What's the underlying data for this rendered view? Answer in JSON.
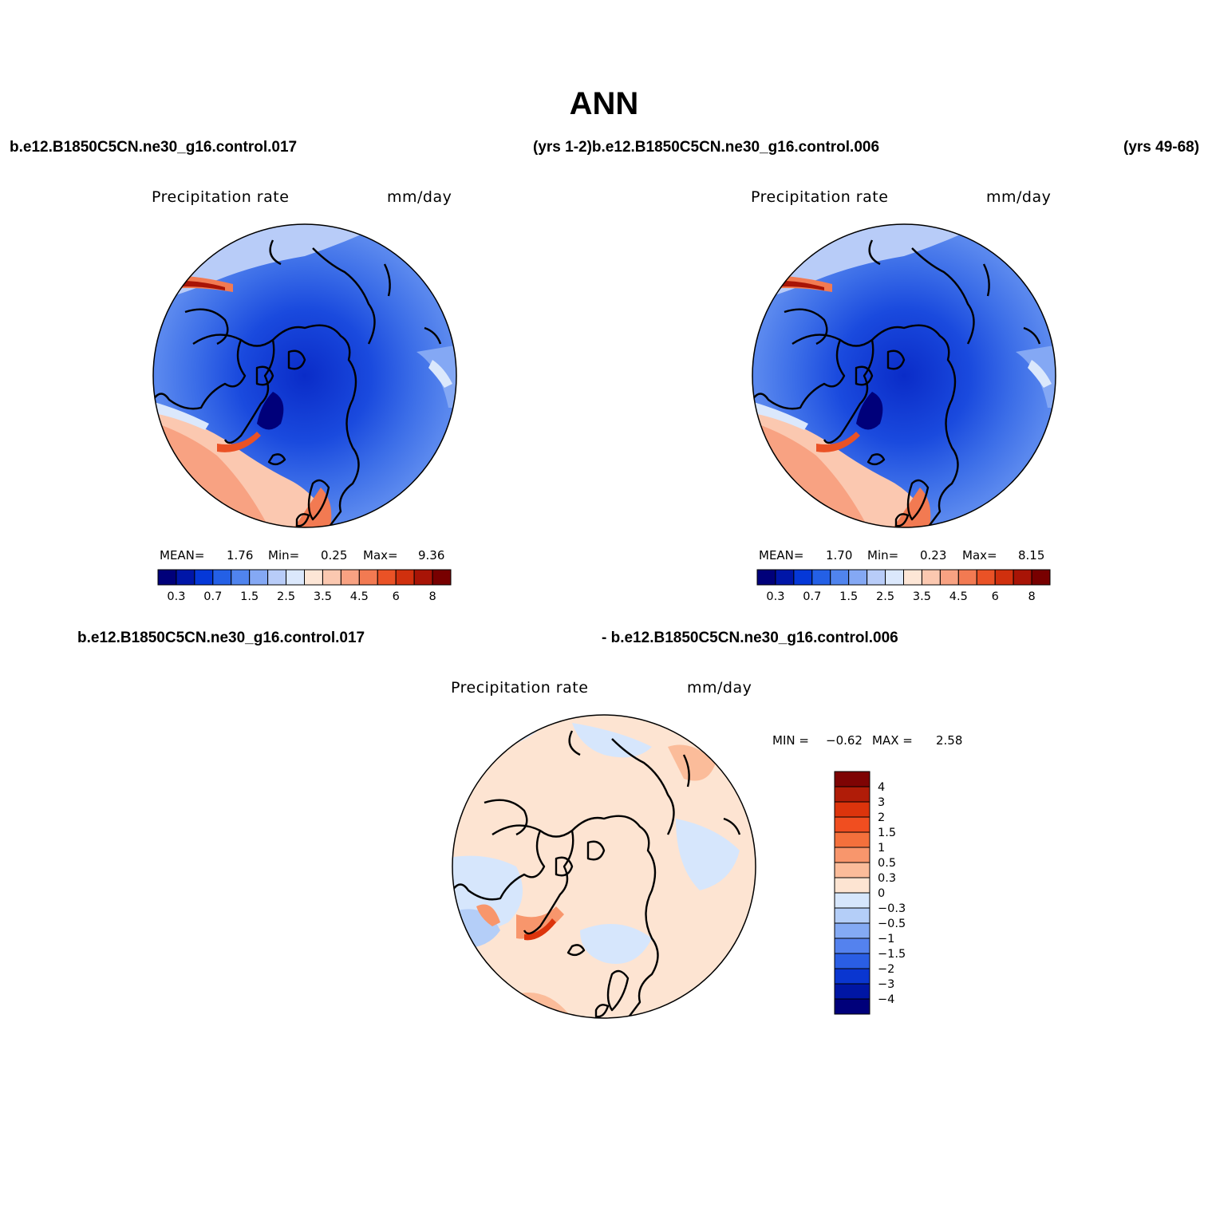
{
  "title": "ANN",
  "case_labels": {
    "top_left": "b.e12.B1850C5CN.ne30_g16.control.017",
    "top_mid": "(yrs 1-2)b.e12.B1850C5CN.ne30_g16.control.006",
    "top_right": "(yrs 49-68)",
    "diff_left": "b.e12.B1850C5CN.ne30_g16.control.017",
    "diff_right": "- b.e12.B1850C5CN.ne30_g16.control.006"
  },
  "panels": [
    {
      "variable": "Precipitation  rate",
      "units": "mm/day",
      "stats": {
        "mean_label": "MEAN=",
        "mean": "1.76",
        "min_label": "Min=",
        "min": "0.25",
        "max_label": "Max=",
        "max": "9.36"
      }
    },
    {
      "variable": "Precipitation  rate",
      "units": "mm/day",
      "stats": {
        "mean_label": "MEAN=",
        "mean": "1.70",
        "min_label": "Min=",
        "min": "0.23",
        "max_label": "Max=",
        "max": "8.15"
      }
    },
    {
      "variable": "Precipitation  rate",
      "units": "mm/day",
      "stats": {
        "min_label": "MIN =",
        "min": "−0.62",
        "max_label": "MAX =",
        "max": "2.58"
      }
    }
  ],
  "colorbar_abs": {
    "labels": [
      "0.3",
      "0.7",
      "1.5",
      "2.5",
      "3.5",
      "4.5",
      "6",
      "8"
    ],
    "colors": [
      "#00007a",
      "#0016a8",
      "#0538d8",
      "#2460e6",
      "#5084ee",
      "#84a8f4",
      "#b8ccf8",
      "#dbe8fc",
      "#fde6d6",
      "#fbc8b0",
      "#f8a282",
      "#f27a52",
      "#ea5226",
      "#d0300e",
      "#a81406",
      "#780000"
    ]
  },
  "colorbar_diff": {
    "labels": [
      "4",
      "3",
      "2",
      "1.5",
      "1",
      "0.5",
      "0.3",
      "0",
      "−0.3",
      "−0.5",
      "−1",
      "−1.5",
      "−2",
      "−3",
      "−4"
    ],
    "colors": [
      "#7e0404",
      "#b01c08",
      "#dc340c",
      "#f04e20",
      "#f4703c",
      "#f8966c",
      "#fbbc9a",
      "#fde4d2",
      "#d6e6fc",
      "#b4cef8",
      "#84aaf4",
      "#5482ee",
      "#2a5ee4",
      "#0a36d0",
      "#0016a4",
      "#00007a"
    ]
  }
}
